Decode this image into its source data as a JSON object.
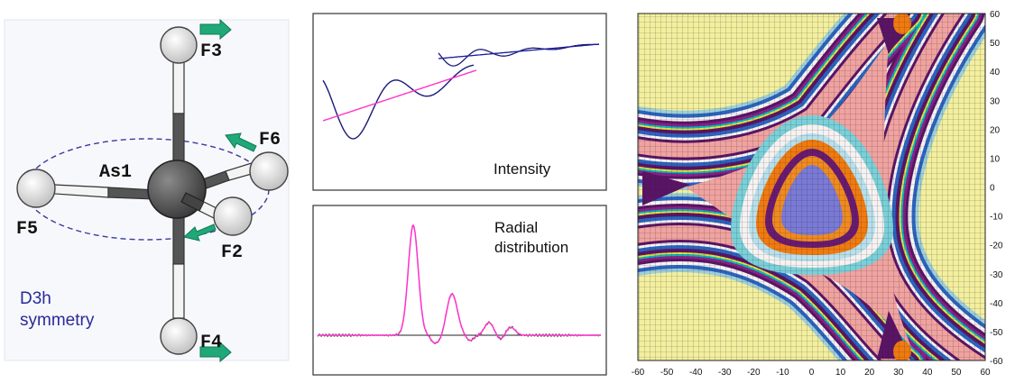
{
  "molecule": {
    "central_atom": "As1",
    "ligands": [
      "F3",
      "F4",
      "F5",
      "F6",
      "F2"
    ],
    "symmetry_line1": "D3h",
    "symmetry_line2": "symmetry",
    "colors": {
      "central": "#555555",
      "ligand": "#e6e6e6",
      "arrow": "#20a878",
      "ellipse": "#3a3a9a",
      "symmetry_text": "#2a2a9a"
    }
  },
  "intensity_panel": {
    "label": "Intensity",
    "colors": {
      "experiment": "#1a1a7a",
      "fit": "#ff33cc"
    }
  },
  "radial_panel": {
    "label_line1": "Radial",
    "label_line2": "distribution",
    "colors": {
      "experiment": "#222222",
      "fit": "#ff33cc"
    }
  },
  "contour_map": {
    "x_ticks": [
      "-60",
      "-50",
      "-40",
      "-30",
      "-20",
      "-10",
      "0",
      "10",
      "20",
      "30",
      "40",
      "50",
      "60"
    ],
    "y_ticks": [
      "60",
      "50",
      "40",
      "30",
      "20",
      "10",
      "0",
      "-10",
      "-20",
      "-30",
      "-40",
      "-50",
      "-60"
    ],
    "colors": {
      "background": "#f3ef9e",
      "grid": "#222222",
      "ridge": "#f0a3a0",
      "dark": "#5a1466",
      "blue": "#2b64c0",
      "orange": "#f07a10",
      "core": "#7a7ad6"
    }
  }
}
